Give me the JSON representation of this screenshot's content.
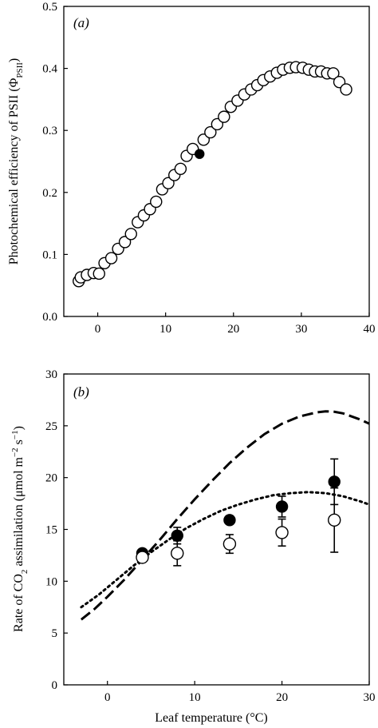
{
  "chart_data": [
    {
      "type": "scatter",
      "panel_label": "(a)",
      "xlabel": "",
      "ylabel": "Photochemical efficiency of PSII (Φ",
      "ylabel_sub": "PSII",
      "ylabel_close": ")",
      "xlim": [
        -5,
        40
      ],
      "ylim": [
        0,
        0.5
      ],
      "xticks": [
        "0",
        "10",
        "20",
        "30",
        "40"
      ],
      "xtick_values": [
        0,
        10,
        20,
        30,
        40
      ],
      "yticks": [
        "0.0",
        "0.1",
        "0.2",
        "0.3",
        "0.4",
        "0.5"
      ],
      "ytick_values": [
        0,
        0.1,
        0.2,
        0.3,
        0.4,
        0.5
      ],
      "grid": false,
      "series": [
        {
          "marker": "open-circle",
          "x": [
            -2.8,
            -2.5,
            -1.6,
            -0.6,
            0.2,
            1.0,
            2.0,
            3.0,
            4.0,
            4.9,
            5.9,
            6.8,
            7.7,
            8.6,
            9.5,
            10.4,
            11.3,
            12.2,
            13.1,
            14.0,
            15.6,
            16.6,
            17.6,
            18.6,
            19.6,
            20.6,
            21.6,
            22.6,
            23.5,
            24.4,
            25.4,
            26.4,
            27.3,
            28.3,
            29.2,
            30.2,
            31.1,
            32.0,
            32.9,
            33.8,
            34.7,
            35.6,
            36.6
          ],
          "y": [
            0.057,
            0.063,
            0.067,
            0.07,
            0.069,
            0.086,
            0.094,
            0.109,
            0.12,
            0.133,
            0.152,
            0.163,
            0.173,
            0.185,
            0.205,
            0.215,
            0.228,
            0.238,
            0.259,
            0.27,
            0.285,
            0.297,
            0.31,
            0.322,
            0.338,
            0.348,
            0.358,
            0.366,
            0.373,
            0.381,
            0.387,
            0.393,
            0.398,
            0.401,
            0.402,
            0.401,
            0.398,
            0.395,
            0.395,
            0.392,
            0.392,
            0.378,
            0.366
          ]
        },
        {
          "marker": "filled-circle",
          "x": [
            15.0
          ],
          "y": [
            0.262
          ]
        }
      ]
    },
    {
      "type": "scatter",
      "panel_label": "(b)",
      "xlabel": "Leaf temperature (°C)",
      "ylabel": "Rate of CO",
      "ylabel_sub": "2",
      "ylabel_rest": " assimilation (μmol m",
      "ylabel_sup1": "−2",
      "ylabel_mid": " s",
      "ylabel_sup2": "−1",
      "ylabel_close": ")",
      "xlim": [
        -5,
        30
      ],
      "ylim": [
        0,
        30
      ],
      "xticks": [
        "0",
        "10",
        "20",
        "30"
      ],
      "xtick_values": [
        0,
        10,
        20,
        30
      ],
      "yticks": [
        "0",
        "5",
        "10",
        "15",
        "20",
        "25",
        "30"
      ],
      "ytick_values": [
        0,
        5,
        10,
        15,
        20,
        25,
        30
      ],
      "grid": false,
      "series": [
        {
          "marker": "filled-circle",
          "x": [
            4,
            8,
            14,
            20,
            26
          ],
          "y": [
            12.7,
            14.4,
            15.9,
            17.2,
            19.6
          ],
          "err": [
            0.0,
            0.8,
            0.4,
            1.0,
            2.2
          ]
        },
        {
          "marker": "open-circle",
          "x": [
            4,
            8,
            14,
            20,
            26
          ],
          "y": [
            12.3,
            12.7,
            13.6,
            14.7,
            15.9
          ],
          "err": [
            0.0,
            1.2,
            0.9,
            1.3,
            3.1
          ]
        },
        {
          "style": "dashed-line",
          "x": [
            -3,
            -1.5,
            0,
            2,
            4,
            6,
            8,
            10,
            12,
            14,
            16,
            18,
            20,
            22,
            24,
            25,
            26,
            27,
            28,
            29,
            30
          ],
          "y": [
            6.3,
            7.3,
            8.5,
            10.2,
            12.1,
            14.0,
            16.0,
            17.9,
            19.7,
            21.4,
            22.9,
            24.2,
            25.2,
            25.9,
            26.3,
            26.4,
            26.35,
            26.2,
            25.9,
            25.6,
            25.2
          ]
        },
        {
          "style": "dotted-line",
          "x": [
            -3,
            -1,
            1,
            3,
            5,
            7,
            9,
            11,
            13,
            15,
            17,
            19,
            21,
            23,
            25,
            27,
            29,
            30
          ],
          "y": [
            7.5,
            8.7,
            10.1,
            11.5,
            12.8,
            14.0,
            15.1,
            16.0,
            16.8,
            17.4,
            17.9,
            18.3,
            18.5,
            18.6,
            18.5,
            18.2,
            17.7,
            17.4
          ]
        }
      ]
    }
  ]
}
